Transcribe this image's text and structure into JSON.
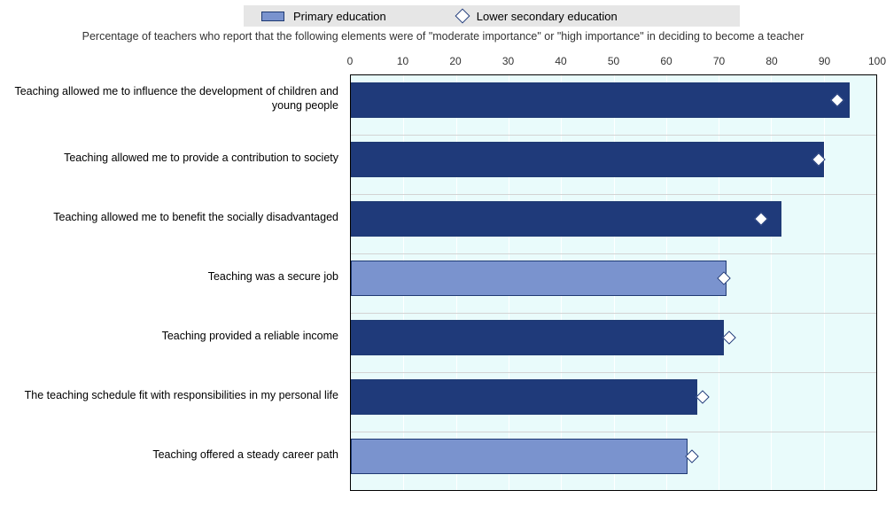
{
  "chart": {
    "type": "bar",
    "orientation": "horizontal",
    "subtitle": "Percentage of teachers who report that the following elements were of \"moderate importance\" or \"high importance\" in deciding to become a teacher",
    "xlim": [
      0,
      100
    ],
    "xtick_step": 10,
    "xticks": [
      0,
      10,
      20,
      30,
      40,
      50,
      60,
      70,
      80,
      90,
      100
    ],
    "background_color": "#e9fbfb",
    "grid_color": "#ffffff",
    "bar_border_color": "#1f3a73",
    "bar_dark_fill": "#1f3a7a",
    "bar_light_fill": "#7a93ce",
    "diamond_fill": "#ffffff",
    "diamond_border": "#1f3a7a",
    "legend": {
      "bg": "#e6e6e6",
      "items": [
        {
          "label": "Primary education",
          "kind": "bar"
        },
        {
          "label": "Lower secondary education",
          "kind": "diamond"
        }
      ]
    },
    "rows": [
      {
        "label": "Teaching allowed me to influence the development of children and young people",
        "primary": 95,
        "lower_secondary": 92.5,
        "shade": "dark"
      },
      {
        "label": "Teaching allowed me to provide a contribution to society",
        "primary": 90,
        "lower_secondary": 89,
        "shade": "dark"
      },
      {
        "label": "Teaching allowed me to benefit the socially disadvantaged",
        "primary": 82,
        "lower_secondary": 78,
        "shade": "dark"
      },
      {
        "label": "Teaching was a secure job",
        "primary": 71.5,
        "lower_secondary": 71,
        "shade": "light"
      },
      {
        "label": "Teaching provided a reliable income",
        "primary": 71,
        "lower_secondary": 72,
        "shade": "dark"
      },
      {
        "label": "The teaching schedule fit with responsibilities in my personal life",
        "primary": 66,
        "lower_secondary": 67,
        "shade": "dark"
      },
      {
        "label": "Teaching offered a steady career path",
        "primary": 64,
        "lower_secondary": 65,
        "shade": "light"
      }
    ],
    "label_fontsize": 12.5,
    "tick_fontsize": 12
  }
}
